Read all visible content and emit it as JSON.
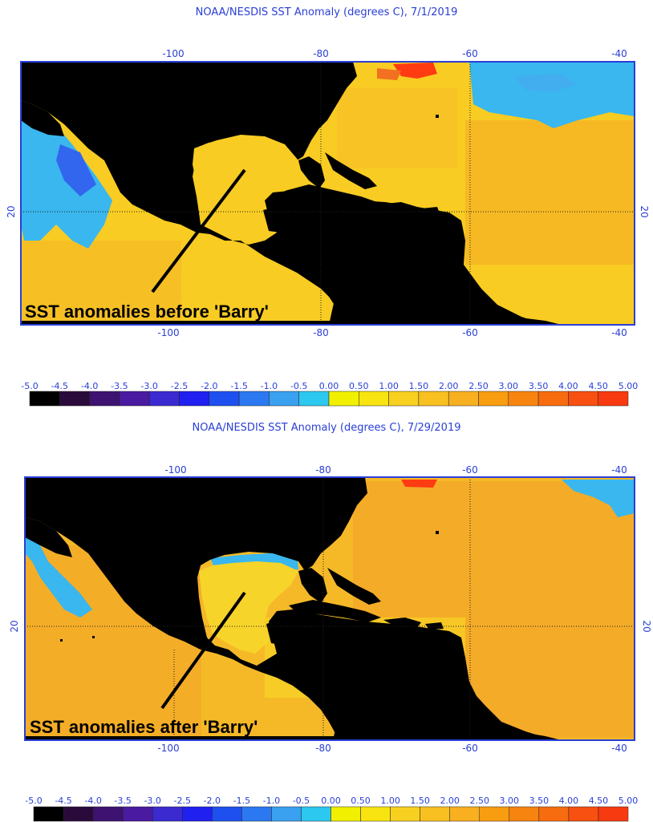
{
  "panels": [
    {
      "title": "NOAA/NESDIS SST Anomaly (degrees C), 7/1/2019",
      "annotation": "SST anomalies before 'Barry'",
      "lon_ticks_top": [
        "-100",
        "-80",
        "-60",
        "-40"
      ],
      "lon_ticks_bottom": [
        "-100",
        "-80",
        "-60",
        "-40"
      ],
      "lat_tick": "20"
    },
    {
      "title": "NOAA/NESDIS SST Anomaly (degrees C), 7/29/2019",
      "annotation": "SST anomalies after 'Barry'",
      "lon_ticks_top": [
        "-100",
        "-80",
        "-60",
        "-40"
      ],
      "lon_ticks_bottom": [
        "-100",
        "-80",
        "-60",
        "-40"
      ],
      "lat_tick": "20"
    }
  ],
  "colorbar": {
    "labels": [
      "-5.0",
      "-4.5",
      "-4.0",
      "-3.5",
      "-3.0",
      "-2.5",
      "-2.0",
      "-1.5",
      "-1.0",
      "-0.5",
      "0.00",
      "0.50",
      "1.00",
      "1.50",
      "2.00",
      "2.50",
      "3.00",
      "3.50",
      "4.00",
      "4.50",
      "5.00"
    ],
    "colors": [
      "#000000",
      "#2a0a3a",
      "#3e1270",
      "#4a1aa0",
      "#3a2ad0",
      "#2020f0",
      "#1e50f0",
      "#2c78f0",
      "#3aa0f0",
      "#2cc8f0",
      "#f0f000",
      "#f8e410",
      "#f8d020",
      "#f8c020",
      "#f8b020",
      "#f89c10",
      "#f88410",
      "#f86c10",
      "#f85010",
      "#f83a10"
    ]
  },
  "colors": {
    "land": "#000000",
    "ocean_base": "#f8cc22",
    "ocean_warm": "#f3a126",
    "ocean_cool": "#f7e33a",
    "cold_anomaly": "#39b7ee",
    "cold_anomaly_strong": "#3366ee",
    "hot_anomaly": "#ff3b12",
    "frame": "#2a3fd6",
    "annotation_text": "#000000"
  },
  "storm_track": "Barry"
}
